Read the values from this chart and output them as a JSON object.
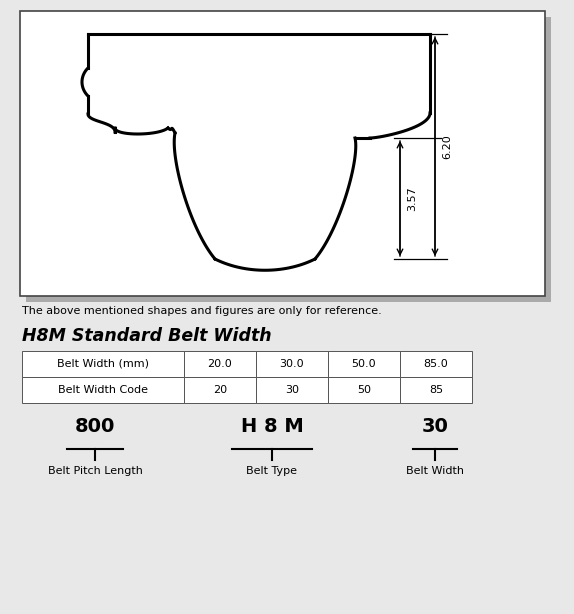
{
  "bg_color": "#e8e8e8",
  "box_bg": "#ffffff",
  "reference_text": "The above mentioned shapes and figures are only for reference.",
  "section_title": "H8M Standard Belt Width",
  "table_row1": [
    "Belt Width (mm)",
    "20.0",
    "30.0",
    "50.0",
    "85.0"
  ],
  "table_row2": [
    "Belt Width Code",
    "20",
    "30",
    "50",
    "85"
  ],
  "label_800": "800",
  "label_H8M": "H 8 M",
  "label_30": "30",
  "caption_800": "Belt Pitch Length",
  "caption_H8M": "Belt Type",
  "caption_30": "Belt Width",
  "dim_357": "3.57",
  "dim_620": "6.20",
  "line_color": "#000000",
  "text_color": "#000000",
  "lw_belt": 2.2
}
